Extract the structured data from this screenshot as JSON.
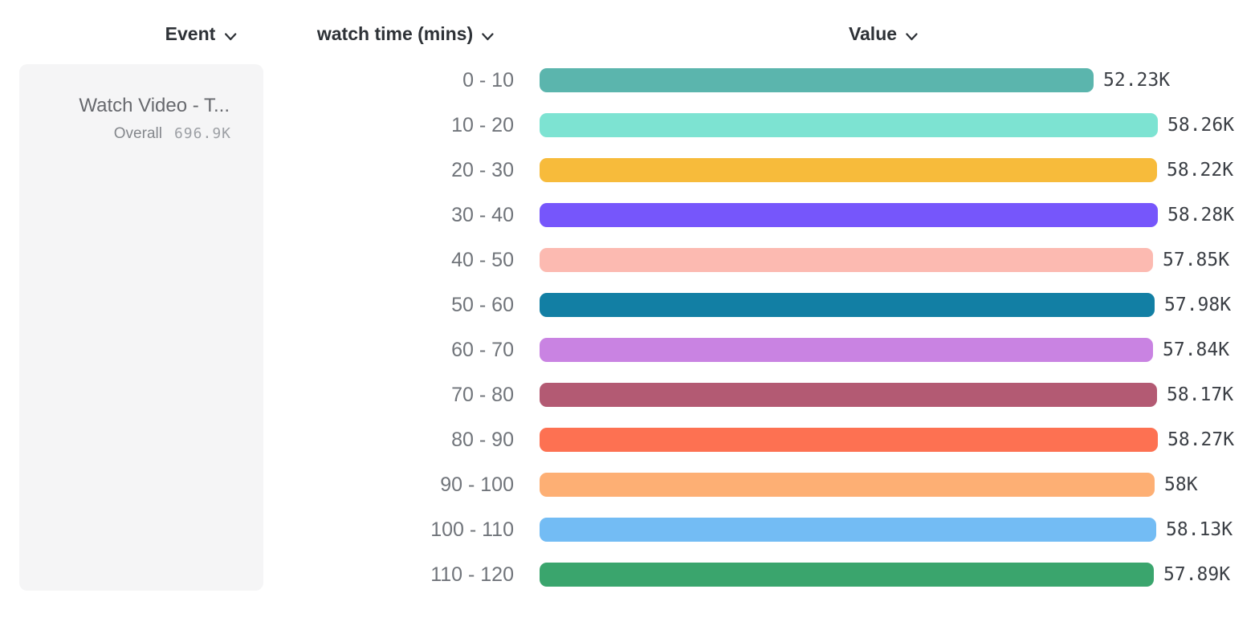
{
  "header": {
    "columns": [
      {
        "id": "event",
        "label": "Event"
      },
      {
        "id": "breakdown",
        "label": "watch time (mins)"
      },
      {
        "id": "value",
        "label": "Value"
      }
    ]
  },
  "event_card": {
    "title": "Watch Video - T...",
    "overall_label": "Overall",
    "overall_value": "696.9K"
  },
  "chart_data": {
    "type": "bar",
    "orientation": "horizontal",
    "title": "",
    "xlabel": "watch time (mins)",
    "ylabel": "Value",
    "grid": false,
    "legend_position": "left",
    "categories": [
      "0 - 10",
      "10 - 20",
      "20 - 30",
      "30 - 40",
      "40 - 50",
      "50 - 60",
      "60 - 70",
      "70 - 80",
      "80 - 90",
      "90 - 100",
      "100 - 110",
      "110 - 120"
    ],
    "values": [
      52230,
      58260,
      58220,
      58280,
      57850,
      57980,
      57840,
      58170,
      58270,
      58000,
      58130,
      57890
    ],
    "value_labels": [
      "52.23K",
      "58.26K",
      "58.22K",
      "58.28K",
      "57.85K",
      "57.98K",
      "57.84K",
      "58.17K",
      "58.27K",
      "58K",
      "58.13K",
      "57.89K"
    ],
    "bar_colors": [
      "#5bb5ad",
      "#7de3d2",
      "#f7bb3b",
      "#7656fb",
      "#fcbab1",
      "#127fa4",
      "#c983e2",
      "#b35a73",
      "#fd7152",
      "#fdaf74",
      "#73bcf4",
      "#3aa56d"
    ]
  },
  "colors": {
    "header_text": "#2e3237",
    "category_text": "#70747a",
    "value_text": "#3b3f45",
    "card_background": "#f5f5f6",
    "card_title_text": "#67696e",
    "card_overall_text": "#84878c",
    "card_value_text": "#9da0a5"
  },
  "icons": {
    "chevron_down": "chevron-down"
  }
}
